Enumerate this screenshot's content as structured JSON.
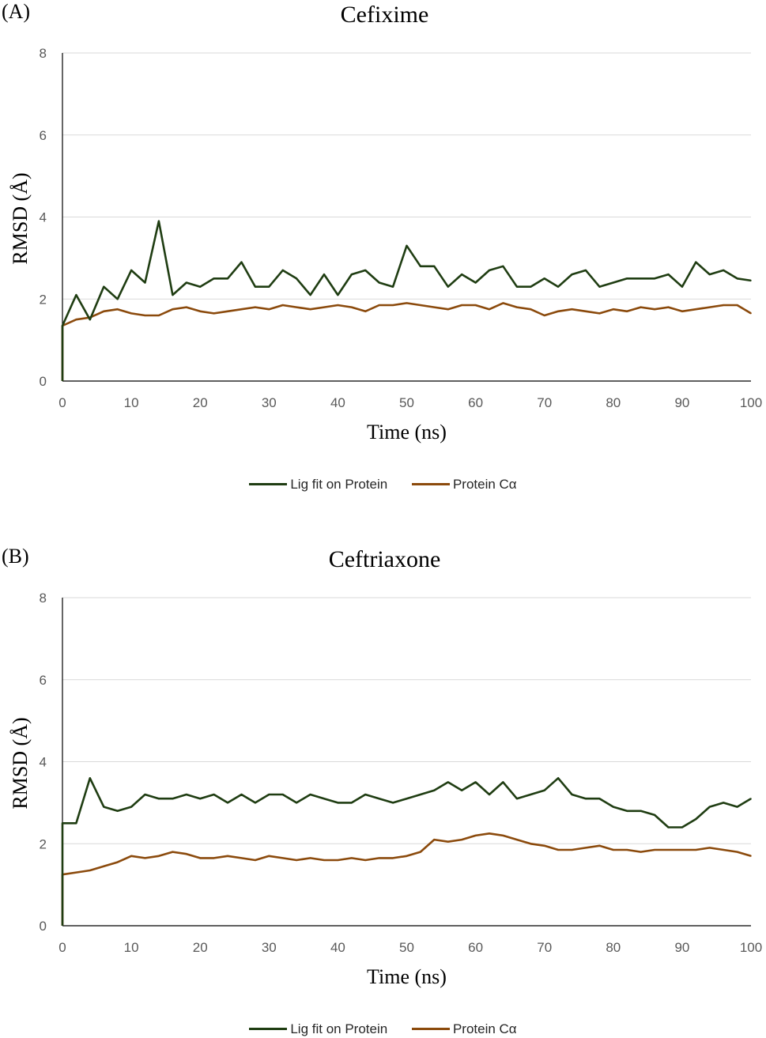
{
  "colors": {
    "lig": "#1f3d12",
    "protein": "#8b4a0c",
    "grid": "#d9d9d9",
    "axis": "#000000"
  },
  "panels": [
    {
      "label": "(A)",
      "title": "Cefixime"
    },
    {
      "label": "(B)",
      "title": "Ceftriaxone"
    }
  ],
  "chart_data": [
    {
      "type": "line",
      "title": "Cefixime",
      "xlabel": "Time (ns)",
      "ylabel": "RMSD (Å)",
      "xlim": [
        0,
        100
      ],
      "ylim": [
        0,
        8
      ],
      "xticks": [
        0,
        10,
        20,
        30,
        40,
        50,
        60,
        70,
        80,
        90,
        100
      ],
      "yticks": [
        0,
        2,
        4,
        6,
        8
      ],
      "grid": true,
      "legend_position": "bottom",
      "x": [
        0,
        2,
        4,
        6,
        8,
        10,
        12,
        14,
        16,
        18,
        20,
        22,
        24,
        26,
        28,
        30,
        32,
        34,
        36,
        38,
        40,
        42,
        44,
        46,
        48,
        50,
        52,
        54,
        56,
        58,
        60,
        62,
        64,
        66,
        68,
        70,
        72,
        74,
        76,
        78,
        80,
        82,
        84,
        86,
        88,
        90,
        92,
        94,
        96,
        98,
        100
      ],
      "series": [
        {
          "name": "Lig fit on Protein",
          "values": [
            1.35,
            2.1,
            1.5,
            2.3,
            2.0,
            2.7,
            2.4,
            3.9,
            2.1,
            2.4,
            2.3,
            2.5,
            2.5,
            2.9,
            2.3,
            2.3,
            2.7,
            2.5,
            2.1,
            2.6,
            2.1,
            2.6,
            2.7,
            2.4,
            2.3,
            3.3,
            2.8,
            2.8,
            2.3,
            2.6,
            2.4,
            2.7,
            2.8,
            2.3,
            2.3,
            2.5,
            2.3,
            2.6,
            2.7,
            2.3,
            2.4,
            2.5,
            2.5,
            2.5,
            2.6,
            2.3,
            2.9,
            2.6,
            2.7,
            2.5,
            2.45
          ]
        },
        {
          "name": "Protein Cα",
          "values": [
            1.35,
            1.5,
            1.55,
            1.7,
            1.75,
            1.65,
            1.6,
            1.6,
            1.75,
            1.8,
            1.7,
            1.65,
            1.7,
            1.75,
            1.8,
            1.75,
            1.85,
            1.8,
            1.75,
            1.8,
            1.85,
            1.8,
            1.7,
            1.85,
            1.85,
            1.9,
            1.85,
            1.8,
            1.75,
            1.85,
            1.85,
            1.75,
            1.9,
            1.8,
            1.75,
            1.6,
            1.7,
            1.75,
            1.7,
            1.65,
            1.75,
            1.7,
            1.8,
            1.75,
            1.8,
            1.7,
            1.75,
            1.8,
            1.85,
            1.85,
            1.65
          ]
        }
      ]
    },
    {
      "type": "line",
      "title": "Ceftriaxone",
      "xlabel": "Time (ns)",
      "ylabel": "RMSD (Å)",
      "xlim": [
        0,
        100
      ],
      "ylim": [
        0,
        8
      ],
      "xticks": [
        0,
        10,
        20,
        30,
        40,
        50,
        60,
        70,
        80,
        90,
        100
      ],
      "yticks": [
        0,
        2,
        4,
        6,
        8
      ],
      "grid": true,
      "legend_position": "bottom",
      "x": [
        0,
        2,
        4,
        6,
        8,
        10,
        12,
        14,
        16,
        18,
        20,
        22,
        24,
        26,
        28,
        30,
        32,
        34,
        36,
        38,
        40,
        42,
        44,
        46,
        48,
        50,
        52,
        54,
        56,
        58,
        60,
        62,
        64,
        66,
        68,
        70,
        72,
        74,
        76,
        78,
        80,
        82,
        84,
        86,
        88,
        90,
        92,
        94,
        96,
        98,
        100
      ],
      "series": [
        {
          "name": "Lig fit on Protein",
          "values": [
            2.5,
            2.5,
            3.6,
            2.9,
            2.8,
            2.9,
            3.2,
            3.1,
            3.1,
            3.2,
            3.1,
            3.2,
            3.0,
            3.2,
            3.0,
            3.2,
            3.2,
            3.0,
            3.2,
            3.1,
            3.0,
            3.0,
            3.2,
            3.1,
            3.0,
            3.1,
            3.2,
            3.3,
            3.5,
            3.3,
            3.5,
            3.2,
            3.5,
            3.1,
            3.2,
            3.3,
            3.6,
            3.2,
            3.1,
            3.1,
            2.9,
            2.8,
            2.8,
            2.7,
            2.4,
            2.4,
            2.6,
            2.9,
            3.0,
            2.9,
            3.1
          ]
        },
        {
          "name": "Protein Cα",
          "values": [
            1.25,
            1.3,
            1.35,
            1.45,
            1.55,
            1.7,
            1.65,
            1.7,
            1.8,
            1.75,
            1.65,
            1.65,
            1.7,
            1.65,
            1.6,
            1.7,
            1.65,
            1.6,
            1.65,
            1.6,
            1.6,
            1.65,
            1.6,
            1.65,
            1.65,
            1.7,
            1.8,
            2.1,
            2.05,
            2.1,
            2.2,
            2.25,
            2.2,
            2.1,
            2.0,
            1.95,
            1.85,
            1.85,
            1.9,
            1.95,
            1.85,
            1.85,
            1.8,
            1.85,
            1.85,
            1.85,
            1.85,
            1.9,
            1.85,
            1.8,
            1.7
          ]
        }
      ]
    }
  ]
}
